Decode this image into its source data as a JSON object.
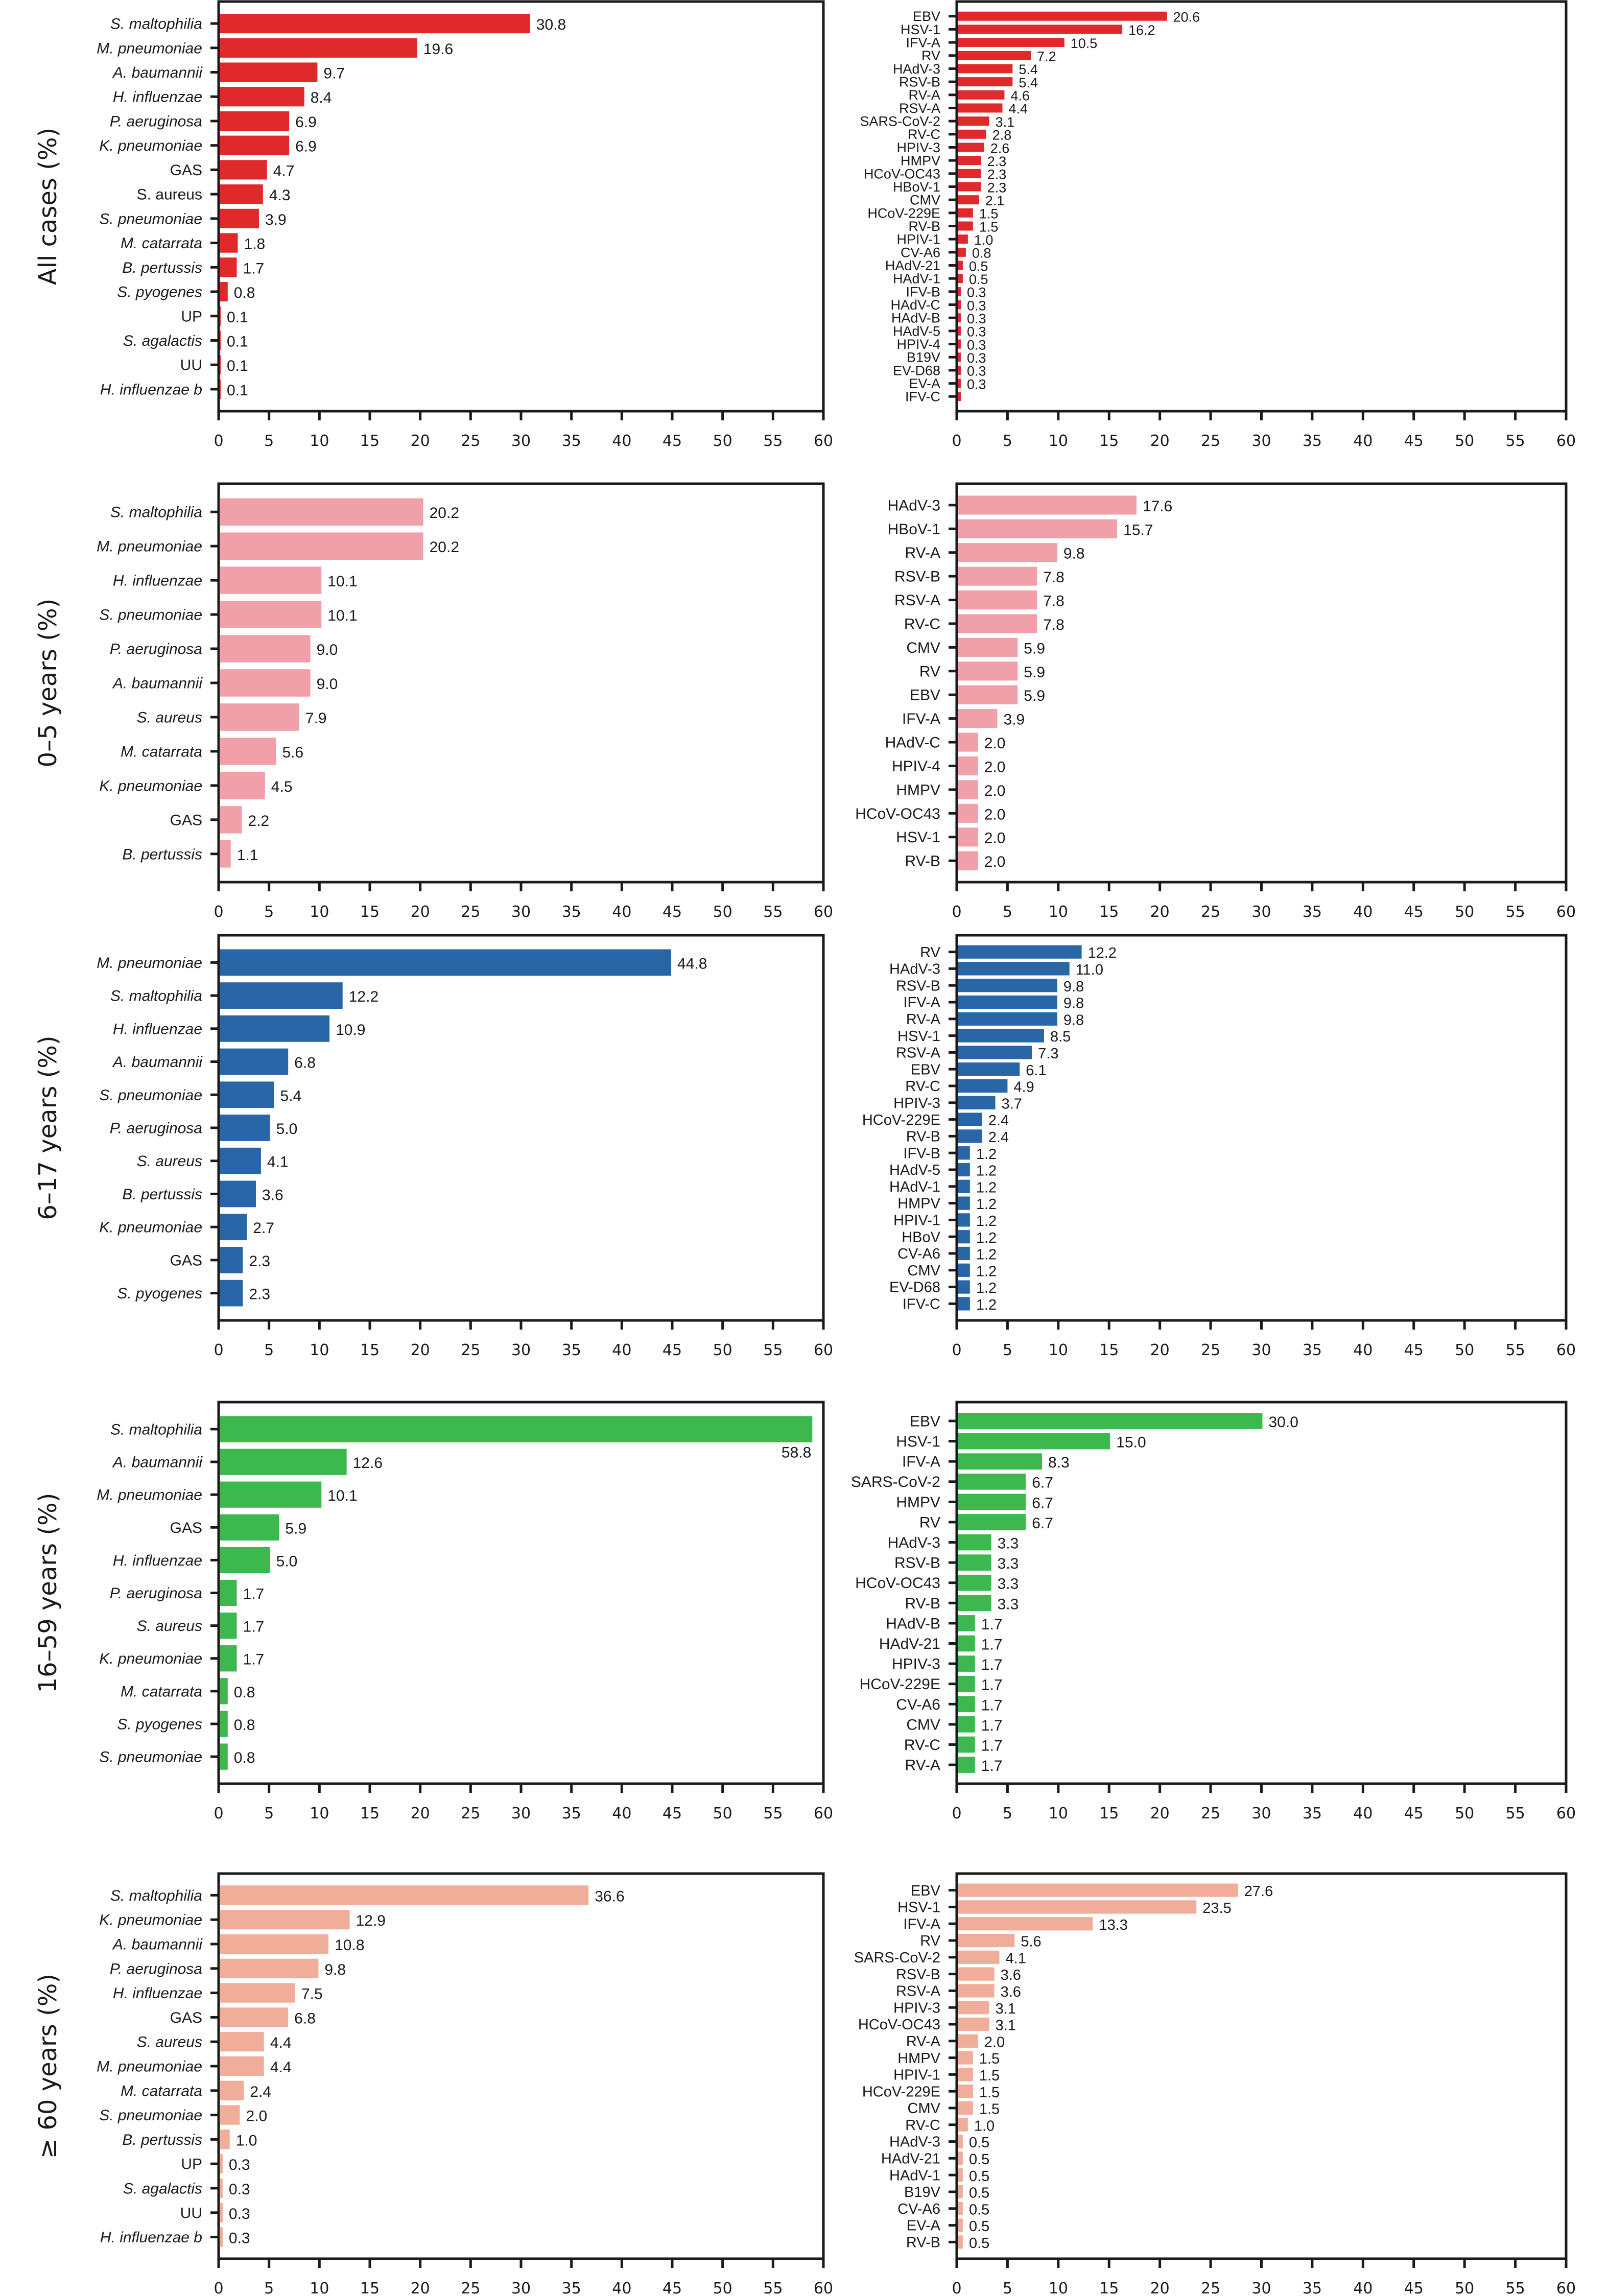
{
  "chart_data": {
    "type": "bar",
    "orientation": "horizontal",
    "x_ticks": [
      0,
      5,
      10,
      15,
      20,
      25,
      30,
      35,
      40,
      45,
      50,
      55,
      60
    ],
    "xlim": [
      0,
      60
    ],
    "grid": false,
    "colors": {
      "all_cases": "#e0292b",
      "age_0_5": "#f0a0a8",
      "age_6_17": "#2866a8",
      "age_16_59": "#3db84f",
      "age_60_plus": "#f0ae9a"
    },
    "rows": [
      {
        "ylabel": "All cases (%)",
        "color_key": "all_cases",
        "bacteria": {
          "categories": [
            "S. maltophilia",
            "M. pneumoniae",
            "A. baumannii",
            "H. influenzae",
            "P. aeruginosa",
            "K. pneumoniae",
            "GAS",
            "S. aureus",
            "S. pneumoniae",
            "M. catarrata",
            "B. pertussis",
            "S. pyogenes",
            "UP",
            "S. agalactis",
            "UU",
            "H. influenzae b"
          ],
          "italic": [
            true,
            true,
            true,
            true,
            true,
            true,
            false,
            false,
            true,
            true,
            true,
            true,
            false,
            true,
            false,
            true
          ],
          "values": [
            30.8,
            19.6,
            9.7,
            8.4,
            6.9,
            6.9,
            4.7,
            4.3,
            3.9,
            1.8,
            1.7,
            0.8,
            0.1,
            0.1,
            0.1,
            0.1
          ],
          "labels": [
            "30.8",
            "19.6",
            "9.7",
            "8.4",
            "6.9",
            "6.9",
            "4.7",
            "4.3",
            "3.9",
            "1.8",
            "1.7",
            "0.8",
            "0.1",
            "0.1",
            "0.1",
            "0.1"
          ]
        },
        "viruses": {
          "categories": [
            "EBV",
            "HSV-1",
            "IFV-A",
            "RV",
            "HAdV-3",
            "RSV-B",
            "RV-A",
            "RSV-A",
            "SARS-CoV-2",
            "RV-C",
            "HPIV-3",
            "HMPV",
            "HCoV-OC43",
            "HBoV-1",
            "CMV",
            "HCoV-229E",
            "RV-B",
            "HPIV-1",
            "CV-A6",
            "HAdV-21",
            "HAdV-1",
            "IFV-B",
            "HAdV-C",
            "HAdV-B",
            "HAdV-5",
            "HPIV-4",
            "B19V",
            "EV-D68",
            "EV-A",
            "IFV-C"
          ],
          "values": [
            20.6,
            16.2,
            10.5,
            7.2,
            5.4,
            5.4,
            4.6,
            4.4,
            3.1,
            2.8,
            2.6,
            2.3,
            2.3,
            2.3,
            2.1,
            1.5,
            1.5,
            1.0,
            0.8,
            0.5,
            0.5,
            0.3,
            0.3,
            0.3,
            0.3,
            0.3,
            0.3,
            0.3,
            0.3,
            0.3
          ],
          "labels": [
            "20.6",
            "16.2",
            "10.5",
            "7.2",
            "5.4",
            "5.4",
            "4.6",
            "4.4",
            "3.1",
            "2.8",
            "2.6",
            "2.3",
            "2.3",
            "2.3",
            "2.1",
            "1.5",
            "1.5",
            "1.0",
            "0.8",
            "0.5",
            "0.5",
            "0.3",
            "0.3",
            "0.3",
            "0.3",
            "0.3",
            "0.3",
            "0.3",
            "0.3",
            ""
          ]
        }
      },
      {
        "ylabel": "0–5 years (%)",
        "color_key": "age_0_5",
        "bacteria": {
          "categories": [
            "S. maltophilia",
            "M. pneumoniae",
            "H. influenzae",
            "S. pneumoniae",
            "P. aeruginosa",
            "A. baumannii",
            "S. aureus",
            "M. catarrata",
            "K. pneumoniae",
            "GAS",
            "B. pertussis"
          ],
          "italic": [
            true,
            true,
            true,
            true,
            true,
            true,
            true,
            true,
            true,
            false,
            true
          ],
          "values": [
            20.2,
            20.2,
            10.1,
            10.1,
            9.0,
            9.0,
            7.9,
            5.6,
            4.5,
            2.2,
            1.1
          ],
          "labels": [
            "20.2",
            "20.2",
            "10.1",
            "10.1",
            "9.0",
            "9.0",
            "7.9",
            "5.6",
            "4.5",
            "2.2",
            "1.1"
          ]
        },
        "viruses": {
          "categories": [
            "HAdV-3",
            "HBoV-1",
            "RV-A",
            "RSV-B",
            "RSV-A",
            "RV-C",
            "CMV",
            "RV",
            "EBV",
            "IFV-A",
            "HAdV-C",
            "HPIV-4",
            "HMPV",
            "HCoV-OC43",
            "HSV-1",
            "RV-B"
          ],
          "values": [
            17.6,
            15.7,
            9.8,
            7.8,
            7.8,
            7.8,
            5.9,
            5.9,
            5.9,
            3.9,
            2.0,
            2.0,
            2.0,
            2.0,
            2.0,
            2.0
          ],
          "labels": [
            "17.6",
            "15.7",
            "9.8",
            "7.8",
            "7.8",
            "7.8",
            "5.9",
            "5.9",
            "5.9",
            "3.9",
            "2.0",
            "2.0",
            "2.0",
            "2.0",
            "2.0",
            "2.0"
          ]
        }
      },
      {
        "ylabel": "6–17 years (%)",
        "color_key": "age_6_17",
        "bacteria": {
          "categories": [
            "M. pneumoniae",
            "S. maltophilia",
            "H. influenzae",
            "A. baumannii",
            "S. pneumoniae",
            "P. aeruginosa",
            "S. aureus",
            "B. pertussis",
            "K. pneumoniae",
            "GAS",
            "S. pyogenes"
          ],
          "italic": [
            true,
            true,
            true,
            true,
            true,
            true,
            true,
            true,
            true,
            false,
            true
          ],
          "values": [
            44.8,
            12.2,
            10.9,
            6.8,
            5.4,
            5.0,
            4.1,
            3.6,
            2.7,
            2.3,
            2.3
          ],
          "labels": [
            "44.8",
            "12.2",
            "10.9",
            "6.8",
            "5.4",
            "5.0",
            "4.1",
            "3.6",
            "2.7",
            "2.3",
            "2.3"
          ]
        },
        "viruses": {
          "categories": [
            "RV",
            "HAdV-3",
            "RSV-B",
            "IFV-A",
            "RV-A",
            "HSV-1",
            "RSV-A",
            "EBV",
            "RV-C",
            "HPIV-3",
            "HCoV-229E",
            "RV-B",
            "IFV-B",
            "HAdV-5",
            "HAdV-1",
            "HMPV",
            "HPIV-1",
            "HBoV",
            "CV-A6",
            "CMV",
            "EV-D68",
            "IFV-C"
          ],
          "values": [
            12.2,
            11.0,
            9.8,
            9.8,
            9.8,
            8.5,
            7.3,
            6.1,
            4.9,
            3.7,
            2.4,
            2.4,
            1.2,
            1.2,
            1.2,
            1.2,
            1.2,
            1.2,
            1.2,
            1.2,
            1.2,
            1.2
          ],
          "labels": [
            "12.2",
            "11.0",
            "9.8",
            "9.8",
            "9.8",
            "8.5",
            "7.3",
            "6.1",
            "4.9",
            "3.7",
            "2.4",
            "2.4",
            "1.2",
            "1.2",
            "1.2",
            "1.2",
            "1.2",
            "1.2",
            "1.2",
            "1.2",
            "1.2",
            "1.2"
          ]
        }
      },
      {
        "ylabel": "16–59 years (%)",
        "color_key": "age_16_59",
        "bacteria": {
          "categories": [
            "S. maltophilia",
            "A. baumannii",
            "M. pneumoniae",
            "GAS",
            "H. influenzae",
            "P. aeruginosa",
            "S. aureus",
            "K. pneumoniae",
            "M. catarrata",
            "S. pyogenes",
            "S. pneumoniae"
          ],
          "italic": [
            true,
            true,
            true,
            false,
            true,
            true,
            true,
            true,
            true,
            true,
            true
          ],
          "values": [
            58.8,
            12.6,
            10.1,
            5.9,
            5.0,
            1.7,
            1.7,
            1.7,
            0.8,
            0.8,
            0.8
          ],
          "labels": [
            "58.8",
            "12.6",
            "10.1",
            "5.9",
            "5.0",
            "1.7",
            "1.7",
            "1.7",
            "0.8",
            "0.8",
            "0.8"
          ]
        },
        "viruses": {
          "categories": [
            "EBV",
            "HSV-1",
            "IFV-A",
            "SARS-CoV-2",
            "HMPV",
            "RV",
            "HAdV-3",
            "RSV-B",
            "HCoV-OC43",
            "RV-B",
            "HAdV-B",
            "HAdV-21",
            "HPIV-3",
            "HCoV-229E",
            "CV-A6",
            "CMV",
            "RV-C",
            "RV-A"
          ],
          "values": [
            30.0,
            15.0,
            8.3,
            6.7,
            6.7,
            6.7,
            3.3,
            3.3,
            3.3,
            3.3,
            1.7,
            1.7,
            1.7,
            1.7,
            1.7,
            1.7,
            1.7,
            1.7
          ],
          "labels": [
            "30.0",
            "15.0",
            "8.3",
            "6.7",
            "6.7",
            "6.7",
            "3.3",
            "3.3",
            "3.3",
            "3.3",
            "1.7",
            "1.7",
            "1.7",
            "1.7",
            "1.7",
            "1.7",
            "1.7",
            "1.7"
          ]
        }
      },
      {
        "ylabel": "≥ 60 years (%)",
        "color_key": "age_60_plus",
        "bacteria": {
          "categories": [
            "S. maltophilia",
            "K. pneumoniae",
            "A. baumannii",
            "P. aeruginosa",
            "H. influenzae",
            "GAS",
            "S. aureus",
            "M. pneumoniae",
            "M. catarrata",
            "S. pneumoniae",
            "B. pertussis",
            "UP",
            "S. agalactis",
            "UU",
            "H. influenzae b"
          ],
          "italic": [
            true,
            true,
            true,
            true,
            true,
            false,
            true,
            true,
            true,
            true,
            true,
            false,
            true,
            false,
            true
          ],
          "values": [
            36.6,
            12.9,
            10.8,
            9.8,
            7.5,
            6.8,
            4.4,
            4.4,
            2.4,
            2.0,
            1.0,
            0.3,
            0.3,
            0.3,
            0.3
          ],
          "labels": [
            "36.6",
            "12.9",
            "10.8",
            "9.8",
            "7.5",
            "6.8",
            "4.4",
            "4.4",
            "2.4",
            "2.0",
            "1.0",
            "0.3",
            "0.3",
            "0.3",
            "0.3"
          ]
        },
        "viruses": {
          "categories": [
            "EBV",
            "HSV-1",
            "IFV-A",
            "RV",
            "SARS-CoV-2",
            "RSV-B",
            "RSV-A",
            "HPIV-3",
            "HCoV-OC43",
            "RV-A",
            "HMPV",
            "HPIV-1",
            "HCoV-229E",
            "CMV",
            "RV-C",
            "HAdV-3",
            "HAdV-21",
            "HAdV-1",
            "B19V",
            "CV-A6",
            "EV-A",
            "RV-B"
          ],
          "values": [
            27.6,
            23.5,
            13.3,
            5.6,
            4.1,
            3.6,
            3.6,
            3.1,
            3.1,
            2.0,
            1.5,
            1.5,
            1.5,
            1.5,
            1.0,
            0.5,
            0.5,
            0.5,
            0.5,
            0.5,
            0.5,
            0.5
          ],
          "labels": [
            "27.6",
            "23.5",
            "13.3",
            "5.6",
            "4.1",
            "3.6",
            "3.6",
            "3.1",
            "3.1",
            "2.0",
            "1.5",
            "1.5",
            "1.5",
            "1.5",
            "1.0",
            "0.5",
            "0.5",
            "0.5",
            "0.5",
            "0.5",
            "0.5",
            "0.5"
          ]
        }
      }
    ]
  }
}
